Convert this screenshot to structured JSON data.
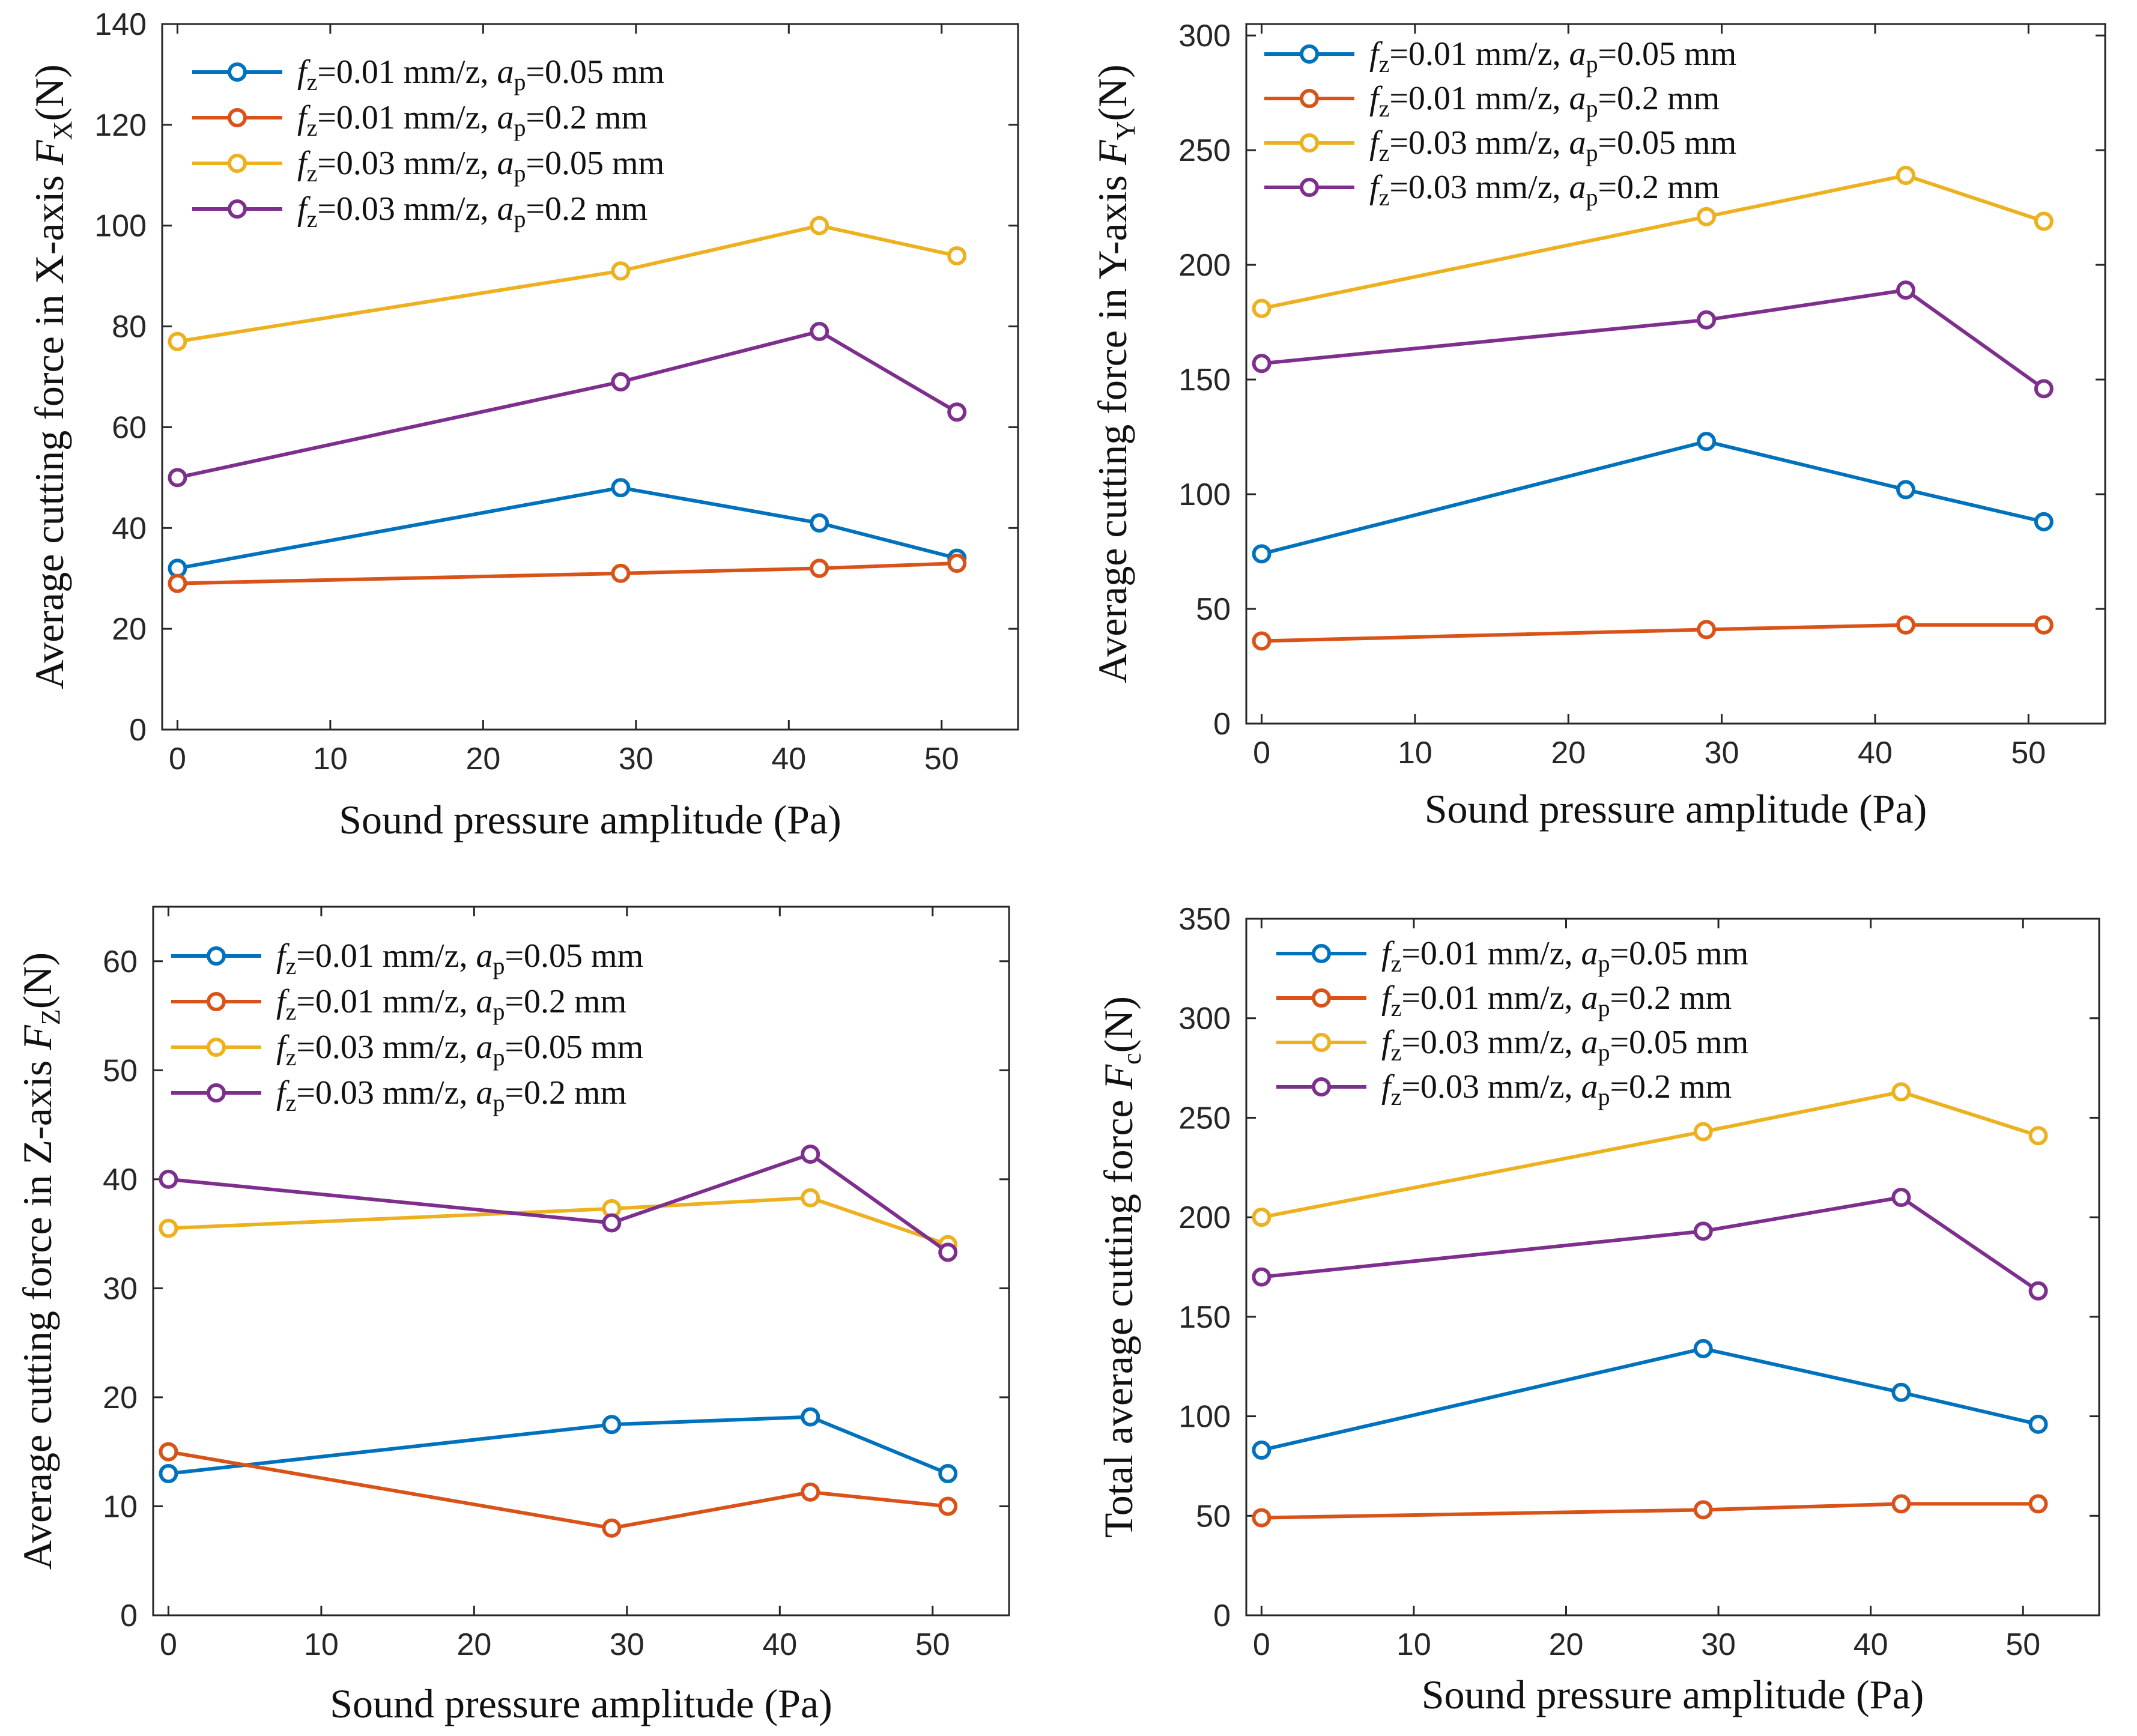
{
  "colors": {
    "blue": "#0072BD",
    "orange": "#D95319",
    "yellow": "#EDB120",
    "purple": "#7E2F8E"
  },
  "chart_data": [
    {
      "type": "line",
      "xlabel": "Sound pressure amplitude (Pa)",
      "ylabel": {
        "prefix": "Average cutting force in X-axis ",
        "symbol": "F",
        "sub": "X",
        "suffix": "(N)"
      },
      "xlim": [
        -1,
        55
      ],
      "ylim": [
        0,
        140
      ],
      "xticks": [
        0,
        10,
        20,
        30,
        40,
        50
      ],
      "yticks": [
        0,
        20,
        40,
        60,
        80,
        100,
        120,
        140
      ],
      "x": [
        0,
        29,
        42,
        51
      ],
      "series": [
        {
          "color": "blue",
          "values": [
            32,
            48,
            41,
            34
          ]
        },
        {
          "color": "orange",
          "values": [
            29,
            31,
            32,
            33
          ]
        },
        {
          "color": "yellow",
          "values": [
            77,
            91,
            100,
            94
          ]
        },
        {
          "color": "purple",
          "values": [
            50,
            69,
            79,
            63
          ]
        }
      ],
      "legend": [
        {
          "f": "f",
          "fsub": "z",
          "fval": "=0.01 mm/z, ",
          "a": "a",
          "asub": "p",
          "aval": "=0.05 mm"
        },
        {
          "f": "f",
          "fsub": "z",
          "fval": "=0.01 mm/z, ",
          "a": "a",
          "asub": "p",
          "aval": "=0.2 mm"
        },
        {
          "f": "f",
          "fsub": "z",
          "fval": "=0.03 mm/z, ",
          "a": "a",
          "asub": "p",
          "aval": "=0.05 mm"
        },
        {
          "f": "f",
          "fsub": "z",
          "fval": "=0.03 mm/z, ",
          "a": "a",
          "asub": "p",
          "aval": "=0.2 mm"
        }
      ],
      "legend_position": "top-left"
    },
    {
      "type": "line",
      "xlabel": "Sound pressure amplitude (Pa)",
      "ylabel": {
        "prefix": "Average cutting force in Y-axis ",
        "symbol": "F",
        "sub": "Y",
        "suffix": "(N)"
      },
      "xlim": [
        -1,
        55
      ],
      "ylim": [
        0,
        305
      ],
      "xticks": [
        0,
        10,
        20,
        30,
        40,
        50
      ],
      "yticks": [
        0,
        50,
        100,
        150,
        200,
        250,
        300
      ],
      "x": [
        0,
        29,
        42,
        51
      ],
      "series": [
        {
          "color": "blue",
          "values": [
            74,
            123,
            102,
            88
          ]
        },
        {
          "color": "orange",
          "values": [
            36,
            41,
            43,
            43
          ]
        },
        {
          "color": "yellow",
          "values": [
            181,
            221,
            239,
            219
          ]
        },
        {
          "color": "purple",
          "values": [
            157,
            176,
            189,
            146
          ]
        }
      ],
      "legend": [
        {
          "f": "f",
          "fsub": "z",
          "fval": "=0.01 mm/z, ",
          "a": "a",
          "asub": "p",
          "aval": "=0.05 mm"
        },
        {
          "f": "f",
          "fsub": "z",
          "fval": "=0.01 mm/z, ",
          "a": "a",
          "asub": "p",
          "aval": "=0.2 mm"
        },
        {
          "f": "f",
          "fsub": "z",
          "fval": "=0.03 mm/z, ",
          "a": "a",
          "asub": "p",
          "aval": "=0.05 mm"
        },
        {
          "f": "f",
          "fsub": "z",
          "fval": "=0.03 mm/z, ",
          "a": "a",
          "asub": "p",
          "aval": "=0.2 mm"
        }
      ],
      "legend_position": "top-left"
    },
    {
      "type": "line",
      "xlabel": "Sound pressure amplitude (Pa)",
      "ylabel": {
        "prefix": "Average cutting force in Z-axis ",
        "symbol": "F",
        "sub": "Z",
        "suffix": "(N)"
      },
      "xlim": [
        -1,
        55
      ],
      "ylim": [
        0,
        65
      ],
      "xticks": [
        0,
        10,
        20,
        30,
        40,
        50
      ],
      "yticks": [
        0,
        10,
        20,
        30,
        40,
        50,
        60
      ],
      "x": [
        0,
        29,
        42,
        51
      ],
      "series": [
        {
          "color": "blue",
          "values": [
            13,
            17.5,
            18.2,
            13
          ]
        },
        {
          "color": "orange",
          "values": [
            15,
            8,
            11.3,
            10
          ]
        },
        {
          "color": "yellow",
          "values": [
            35.5,
            37.3,
            38.3,
            34
          ]
        },
        {
          "color": "purple",
          "values": [
            40,
            36,
            42.3,
            33.3
          ]
        }
      ],
      "legend": [
        {
          "f": "f",
          "fsub": "z",
          "fval": "=0.01 mm/z, ",
          "a": "a",
          "asub": "p",
          "aval": "=0.05 mm"
        },
        {
          "f": "f",
          "fsub": "z",
          "fval": "=0.01 mm/z, ",
          "a": "a",
          "asub": "p",
          "aval": "=0.2 mm"
        },
        {
          "f": "f",
          "fsub": "z",
          "fval": "=0.03 mm/z, ",
          "a": "a",
          "asub": "p",
          "aval": "=0.05 mm"
        },
        {
          "f": "f",
          "fsub": "z",
          "fval": "=0.03 mm/z, ",
          "a": "a",
          "asub": "p",
          "aval": "=0.2 mm"
        }
      ],
      "legend_position": "top-left"
    },
    {
      "type": "line",
      "xlabel": "Sound pressure amplitude (Pa)",
      "ylabel": {
        "prefix": "Total average cutting force ",
        "symbol": "F",
        "sub": "c",
        "suffix": "(N)"
      },
      "xlim": [
        -1,
        55
      ],
      "ylim": [
        0,
        350
      ],
      "xticks": [
        0,
        10,
        20,
        30,
        40,
        50
      ],
      "yticks": [
        0,
        50,
        100,
        150,
        200,
        250,
        300,
        350
      ],
      "x": [
        0,
        29,
        42,
        51
      ],
      "series": [
        {
          "color": "blue",
          "values": [
            83,
            134,
            112,
            96
          ]
        },
        {
          "color": "orange",
          "values": [
            49,
            53,
            56,
            56
          ]
        },
        {
          "color": "yellow",
          "values": [
            200,
            243,
            263,
            241
          ]
        },
        {
          "color": "purple",
          "values": [
            170,
            193,
            210,
            163
          ]
        }
      ],
      "legend": [
        {
          "f": "f",
          "fsub": "z",
          "fval": "=0.01 mm/z, ",
          "a": "a",
          "asub": "p",
          "aval": "=0.05 mm"
        },
        {
          "f": "f",
          "fsub": "z",
          "fval": "=0.01 mm/z, ",
          "a": "a",
          "asub": "p",
          "aval": "=0.2 mm"
        },
        {
          "f": "f",
          "fsub": "z",
          "fval": "=0.03 mm/z, ",
          "a": "a",
          "asub": "p",
          "aval": "=0.05 mm"
        },
        {
          "f": "f",
          "fsub": "z",
          "fval": "=0.03 mm/z, ",
          "a": "a",
          "asub": "p",
          "aval": "=0.2 mm"
        }
      ],
      "legend_position": "top-left"
    }
  ]
}
